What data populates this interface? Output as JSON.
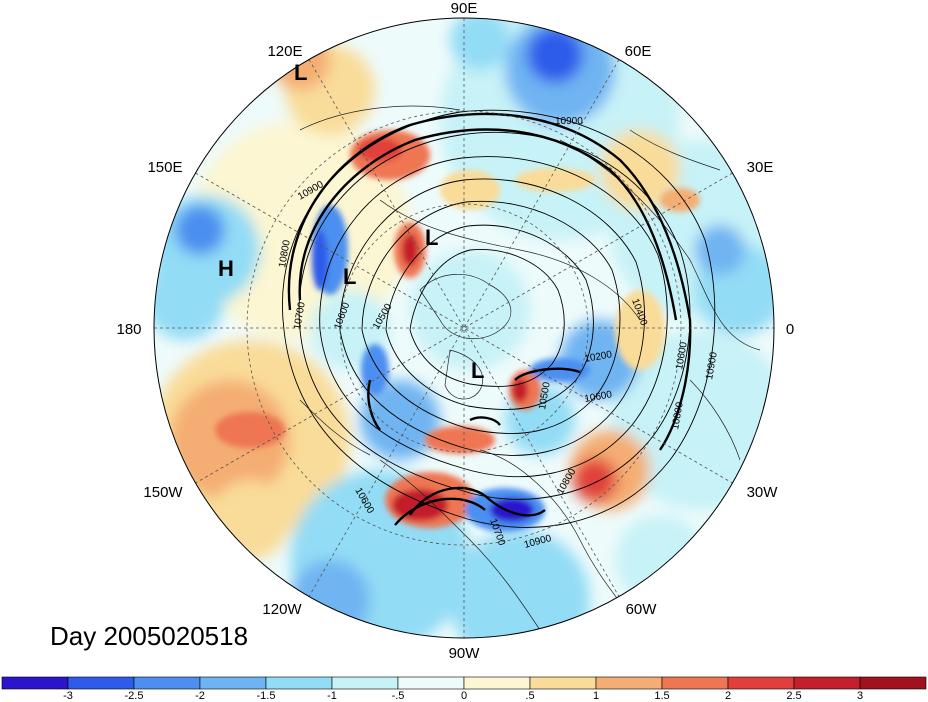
{
  "map": {
    "projection": "polar-stereographic-north",
    "longitude_labels": [
      {
        "text": "90E",
        "lon": 90
      },
      {
        "text": "60E",
        "lon": 60
      },
      {
        "text": "30E",
        "lon": 30
      },
      {
        "text": "0",
        "lon": 0
      },
      {
        "text": "30W",
        "lon": -30
      },
      {
        "text": "60W",
        "lon": -60
      },
      {
        "text": "90W",
        "lon": -90
      },
      {
        "text": "120W",
        "lon": -120
      },
      {
        "text": "150W",
        "lon": -150
      },
      {
        "text": "180",
        "lon": 180
      },
      {
        "text": "150E",
        "lon": 150
      },
      {
        "text": "120E",
        "lon": 120
      }
    ],
    "pressure_centers": [
      {
        "text": "L",
        "id": "l-120e"
      },
      {
        "text": "H",
        "id": "h-pacific"
      },
      {
        "text": "L",
        "id": "l-siberia"
      },
      {
        "text": "L",
        "id": "l-eastsiberia"
      },
      {
        "text": "L",
        "id": "l-canada"
      }
    ],
    "contour_labels": [
      "10900",
      "10900",
      "10800",
      "10700",
      "10600",
      "10500",
      "10200",
      "10600",
      "10400",
      "10500",
      "10600",
      "10800",
      "10900",
      "10600",
      "10700",
      "10800",
      "10900"
    ]
  },
  "title": "Day 2005020518",
  "colorbar": {
    "ticks": [
      "-3",
      "-2.5",
      "-2",
      "-1.5",
      "-1",
      "-.5",
      "0",
      ".5",
      "1",
      "1.5",
      "2",
      "2.5",
      "3"
    ],
    "colors": [
      "#2a14cc",
      "#2f5bea",
      "#4c8ff0",
      "#6fb4f2",
      "#93dcf5",
      "#c7f2f7",
      "#eefbfb",
      "#fcf6d2",
      "#f9dc99",
      "#f4ad72",
      "#ee7652",
      "#e13f3b",
      "#c41f2c",
      "#a1121f"
    ]
  }
}
